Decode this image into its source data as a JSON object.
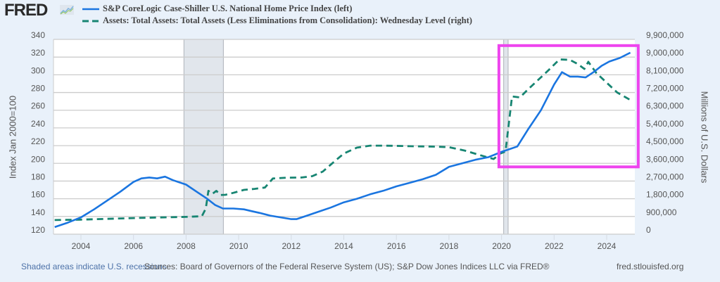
{
  "brand": {
    "logo_text": "FRED",
    "logo_icon": "chart-trend-icon"
  },
  "footer": {
    "recession_note": "Shaded areas indicate U.S. recessions",
    "sources": "Sources: Board of Governors of the Federal Reserve System (US); S&P Dow Jones Indices LLC via FRED®",
    "url": "fred.stlouisfed.org"
  },
  "colors": {
    "home_price_line": "#1a75e0",
    "assets_line": "#178572",
    "recession_shade": "#e1e6ec",
    "highlight_box": "#ee44ee",
    "background": "#e9f1fa",
    "plot_background": "#ffffff",
    "grid": "#cccccc",
    "tick_text": "#555555"
  },
  "chart_data": {
    "type": "line",
    "title": "",
    "legend": {
      "placement": "top-left",
      "entries": [
        "S&P CoreLogic Case-Shiller U.S. National Home Price Index (left)",
        "Assets: Total Assets: Total Assets (Less Eliminations from Consolidation): Wednesday Level (right)"
      ]
    },
    "xlabel": "",
    "ylabel_left": "Index Jan 2000=100",
    "ylabel_right": "Millions of U.S. Dollars",
    "xlim": [
      2003.0,
      2025.1
    ],
    "ylim_left": [
      120,
      340
    ],
    "ylim_right": [
      0,
      9900000
    ],
    "x_ticks": [
      "2004",
      "2006",
      "2008",
      "2010",
      "2012",
      "2014",
      "2016",
      "2018",
      "2020",
      "2022",
      "2024"
    ],
    "y_ticks_left": [
      "120",
      "140",
      "160",
      "180",
      "200",
      "220",
      "240",
      "260",
      "280",
      "300",
      "320",
      "340"
    ],
    "y_ticks_right": [
      "0",
      "900,000",
      "1,800,000",
      "2,700,000",
      "3,600,000",
      "4,500,000",
      "5,400,000",
      "6,300,000",
      "7,200,000",
      "8,100,000",
      "9,000,000",
      "9,900,000"
    ],
    "grid": true,
    "recessions": [
      {
        "start": 2007.92,
        "end": 2009.42
      },
      {
        "start": 2020.08,
        "end": 2020.25
      }
    ],
    "highlight_box": {
      "x_start": 2019.9,
      "x_end": 2025.2,
      "y_left_start": 196,
      "y_left_end": 333
    },
    "series": [
      {
        "name": "S&P CoreLogic Case-Shiller U.S. National Home Price Index (left)",
        "axis": "left",
        "style": "solid",
        "x": [
          2003.0,
          2003.5,
          2004.0,
          2004.5,
          2005.0,
          2005.5,
          2006.0,
          2006.3,
          2006.6,
          2006.9,
          2007.2,
          2007.5,
          2008.0,
          2008.4,
          2008.8,
          2009.1,
          2009.4,
          2009.8,
          2010.2,
          2010.5,
          2010.8,
          2011.2,
          2011.6,
          2012.0,
          2012.2,
          2012.6,
          2013.0,
          2013.5,
          2014.0,
          2014.5,
          2015.0,
          2015.5,
          2016.0,
          2016.5,
          2017.0,
          2017.5,
          2018.0,
          2018.5,
          2019.0,
          2019.5,
          2020.0,
          2020.3,
          2020.6,
          2021.0,
          2021.5,
          2022.0,
          2022.3,
          2022.6,
          2022.9,
          2023.2,
          2023.5,
          2023.8,
          2024.1,
          2024.5,
          2024.9
        ],
        "values": [
          128,
          133,
          139,
          148,
          158,
          168,
          179,
          183,
          184,
          183,
          185,
          181,
          176,
          168,
          160,
          153,
          149,
          149,
          148,
          146,
          144,
          141,
          139,
          137,
          137,
          141,
          145,
          150,
          156,
          160,
          165,
          169,
          174,
          178,
          182,
          187,
          196,
          200,
          204,
          207,
          213,
          216,
          219,
          238,
          260,
          289,
          303,
          298,
          298,
          297,
          303,
          310,
          315,
          319,
          325
        ]
      },
      {
        "name": "Assets: Total Assets: Total Assets (Less Eliminations from Consolidation): Wednesday Level (right)",
        "axis": "right",
        "style": "dashed",
        "x": [
          2003.0,
          2004.0,
          2005.0,
          2006.0,
          2007.0,
          2008.0,
          2008.6,
          2008.75,
          2008.85,
          2009.0,
          2009.15,
          2009.3,
          2009.5,
          2009.8,
          2010.2,
          2010.6,
          2011.0,
          2011.3,
          2011.8,
          2012.4,
          2012.8,
          2013.2,
          2013.6,
          2014.0,
          2014.5,
          2015.0,
          2015.5,
          2016.0,
          2016.5,
          2017.0,
          2017.5,
          2018.0,
          2018.6,
          2019.2,
          2019.7,
          2019.95,
          2020.15,
          2020.25,
          2020.4,
          2020.7,
          2021.0,
          2021.4,
          2021.8,
          2022.2,
          2022.6,
          2022.9,
          2023.15,
          2023.3,
          2023.6,
          2024.0,
          2024.4,
          2024.9
        ],
        "values": [
          720000,
          740000,
          780000,
          820000,
          850000,
          880000,
          910000,
          1300000,
          2200000,
          2050000,
          2200000,
          1990000,
          2000000,
          2100000,
          2250000,
          2300000,
          2370000,
          2830000,
          2870000,
          2880000,
          2950000,
          3180000,
          3650000,
          4100000,
          4400000,
          4500000,
          4500000,
          4490000,
          4470000,
          4460000,
          4450000,
          4420000,
          4250000,
          4010000,
          3820000,
          4100000,
          4200000,
          5300000,
          7000000,
          6950000,
          7350000,
          7850000,
          8350000,
          8880000,
          8860000,
          8650000,
          8400000,
          8760000,
          8200000,
          7700000,
          7200000,
          6820000
        ]
      }
    ]
  }
}
